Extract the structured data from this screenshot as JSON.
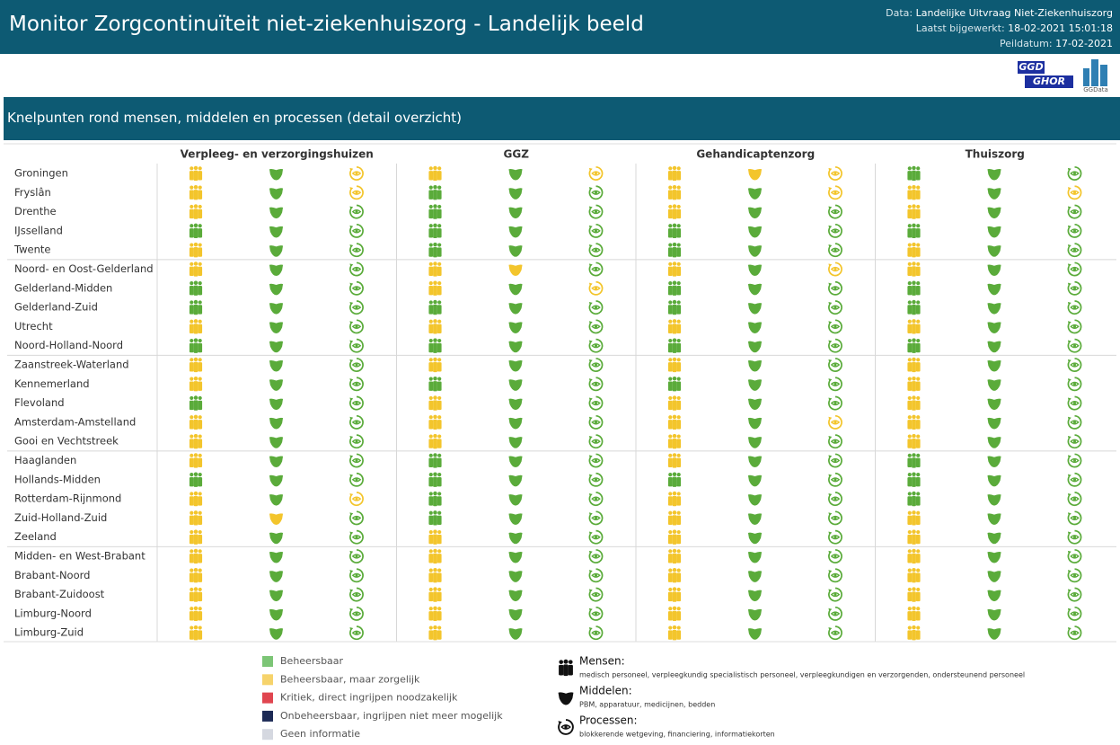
{
  "header": {
    "title": "Monitor Zorgcontinuïteit niet-ziekenhuiszorg - Landelijk beeld",
    "meta": [
      {
        "label": "Data:",
        "value": "Landelijke Uitvraag Niet-Ziekenhuiszorg"
      },
      {
        "label": "Laatst bijgewerkt:",
        "value": "18-02-2021 15:01:18"
      },
      {
        "label": "Peildatum:",
        "value": "17-02-2021"
      }
    ],
    "logos": [
      "GGD",
      "GHOR",
      "GGData"
    ]
  },
  "section": {
    "title": "Knelpunten rond mensen, middelen en processen (detail overzicht)"
  },
  "table": {
    "columns": [
      "Verpleeg- en verzorgingshuizen",
      "GGZ",
      "Gehandicaptenzorg",
      "Thuiszorg"
    ],
    "rows": [
      {
        "name": "Groningen",
        "cells": [
          [
            "#f3c52c",
            "#5aab3a",
            "#f3c52c"
          ],
          [
            "#f3c52c",
            "#5aab3a",
            "#f3c52c"
          ],
          [
            "#f3c52c",
            "#f3c52c",
            "#f3c52c"
          ],
          [
            "#5aab3a",
            "#5aab3a",
            "#5aab3a"
          ]
        ]
      },
      {
        "name": "Fryslân",
        "cells": [
          [
            "#f3c52c",
            "#5aab3a",
            "#f3c52c"
          ],
          [
            "#5aab3a",
            "#5aab3a",
            "#5aab3a"
          ],
          [
            "#f3c52c",
            "#5aab3a",
            "#f3c52c"
          ],
          [
            "#f3c52c",
            "#5aab3a",
            "#f3c52c"
          ]
        ]
      },
      {
        "name": "Drenthe",
        "cells": [
          [
            "#f3c52c",
            "#5aab3a",
            "#5aab3a"
          ],
          [
            "#5aab3a",
            "#5aab3a",
            "#5aab3a"
          ],
          [
            "#f3c52c",
            "#5aab3a",
            "#5aab3a"
          ],
          [
            "#f3c52c",
            "#5aab3a",
            "#5aab3a"
          ]
        ]
      },
      {
        "name": "IJsselland",
        "cells": [
          [
            "#5aab3a",
            "#5aab3a",
            "#5aab3a"
          ],
          [
            "#5aab3a",
            "#5aab3a",
            "#5aab3a"
          ],
          [
            "#5aab3a",
            "#5aab3a",
            "#5aab3a"
          ],
          [
            "#5aab3a",
            "#5aab3a",
            "#5aab3a"
          ]
        ]
      },
      {
        "name": "Twente",
        "cells": [
          [
            "#f3c52c",
            "#5aab3a",
            "#5aab3a"
          ],
          [
            "#5aab3a",
            "#5aab3a",
            "#5aab3a"
          ],
          [
            "#5aab3a",
            "#5aab3a",
            "#5aab3a"
          ],
          [
            "#f3c52c",
            "#5aab3a",
            "#5aab3a"
          ]
        ]
      },
      {
        "name": "Noord- en Oost-Gelderland",
        "cells": [
          [
            "#f3c52c",
            "#5aab3a",
            "#5aab3a"
          ],
          [
            "#f3c52c",
            "#f3c52c",
            "#5aab3a"
          ],
          [
            "#f3c52c",
            "#5aab3a",
            "#f3c52c"
          ],
          [
            "#f3c52c",
            "#5aab3a",
            "#5aab3a"
          ]
        ]
      },
      {
        "name": "Gelderland-Midden",
        "cells": [
          [
            "#5aab3a",
            "#5aab3a",
            "#5aab3a"
          ],
          [
            "#f3c52c",
            "#5aab3a",
            "#f3c52c"
          ],
          [
            "#5aab3a",
            "#5aab3a",
            "#5aab3a"
          ],
          [
            "#5aab3a",
            "#5aab3a",
            "#5aab3a"
          ]
        ]
      },
      {
        "name": "Gelderland-Zuid",
        "cells": [
          [
            "#5aab3a",
            "#5aab3a",
            "#5aab3a"
          ],
          [
            "#5aab3a",
            "#5aab3a",
            "#5aab3a"
          ],
          [
            "#5aab3a",
            "#5aab3a",
            "#5aab3a"
          ],
          [
            "#5aab3a",
            "#5aab3a",
            "#5aab3a"
          ]
        ]
      },
      {
        "name": "Utrecht",
        "cells": [
          [
            "#f3c52c",
            "#5aab3a",
            "#5aab3a"
          ],
          [
            "#f3c52c",
            "#5aab3a",
            "#5aab3a"
          ],
          [
            "#f3c52c",
            "#5aab3a",
            "#5aab3a"
          ],
          [
            "#f3c52c",
            "#5aab3a",
            "#5aab3a"
          ]
        ]
      },
      {
        "name": "Noord-Holland-Noord",
        "cells": [
          [
            "#5aab3a",
            "#5aab3a",
            "#5aab3a"
          ],
          [
            "#5aab3a",
            "#5aab3a",
            "#5aab3a"
          ],
          [
            "#5aab3a",
            "#5aab3a",
            "#5aab3a"
          ],
          [
            "#5aab3a",
            "#5aab3a",
            "#5aab3a"
          ]
        ]
      },
      {
        "name": "Zaanstreek-Waterland",
        "cells": [
          [
            "#f3c52c",
            "#5aab3a",
            "#5aab3a"
          ],
          [
            "#f3c52c",
            "#5aab3a",
            "#5aab3a"
          ],
          [
            "#f3c52c",
            "#5aab3a",
            "#5aab3a"
          ],
          [
            "#f3c52c",
            "#5aab3a",
            "#5aab3a"
          ]
        ]
      },
      {
        "name": "Kennemerland",
        "cells": [
          [
            "#f3c52c",
            "#5aab3a",
            "#5aab3a"
          ],
          [
            "#5aab3a",
            "#5aab3a",
            "#5aab3a"
          ],
          [
            "#5aab3a",
            "#5aab3a",
            "#5aab3a"
          ],
          [
            "#f3c52c",
            "#5aab3a",
            "#5aab3a"
          ]
        ]
      },
      {
        "name": "Flevoland",
        "cells": [
          [
            "#5aab3a",
            "#5aab3a",
            "#5aab3a"
          ],
          [
            "#f3c52c",
            "#5aab3a",
            "#5aab3a"
          ],
          [
            "#f3c52c",
            "#5aab3a",
            "#5aab3a"
          ],
          [
            "#f3c52c",
            "#5aab3a",
            "#5aab3a"
          ]
        ]
      },
      {
        "name": "Amsterdam-Amstelland",
        "cells": [
          [
            "#f3c52c",
            "#5aab3a",
            "#5aab3a"
          ],
          [
            "#f3c52c",
            "#5aab3a",
            "#5aab3a"
          ],
          [
            "#f3c52c",
            "#5aab3a",
            "#f3c52c"
          ],
          [
            "#f3c52c",
            "#5aab3a",
            "#5aab3a"
          ]
        ]
      },
      {
        "name": "Gooi en Vechtstreek",
        "cells": [
          [
            "#f3c52c",
            "#5aab3a",
            "#5aab3a"
          ],
          [
            "#f3c52c",
            "#5aab3a",
            "#5aab3a"
          ],
          [
            "#f3c52c",
            "#5aab3a",
            "#5aab3a"
          ],
          [
            "#f3c52c",
            "#5aab3a",
            "#5aab3a"
          ]
        ]
      },
      {
        "name": "Haaglanden",
        "cells": [
          [
            "#f3c52c",
            "#5aab3a",
            "#5aab3a"
          ],
          [
            "#5aab3a",
            "#5aab3a",
            "#5aab3a"
          ],
          [
            "#f3c52c",
            "#5aab3a",
            "#5aab3a"
          ],
          [
            "#5aab3a",
            "#5aab3a",
            "#5aab3a"
          ]
        ]
      },
      {
        "name": "Hollands-Midden",
        "cells": [
          [
            "#5aab3a",
            "#5aab3a",
            "#5aab3a"
          ],
          [
            "#5aab3a",
            "#5aab3a",
            "#5aab3a"
          ],
          [
            "#5aab3a",
            "#5aab3a",
            "#5aab3a"
          ],
          [
            "#5aab3a",
            "#5aab3a",
            "#5aab3a"
          ]
        ]
      },
      {
        "name": "Rotterdam-Rijnmond",
        "cells": [
          [
            "#f3c52c",
            "#5aab3a",
            "#f3c52c"
          ],
          [
            "#5aab3a",
            "#5aab3a",
            "#5aab3a"
          ],
          [
            "#f3c52c",
            "#5aab3a",
            "#5aab3a"
          ],
          [
            "#5aab3a",
            "#5aab3a",
            "#5aab3a"
          ]
        ]
      },
      {
        "name": "Zuid-Holland-Zuid",
        "cells": [
          [
            "#f3c52c",
            "#f3c52c",
            "#5aab3a"
          ],
          [
            "#5aab3a",
            "#5aab3a",
            "#5aab3a"
          ],
          [
            "#f3c52c",
            "#5aab3a",
            "#5aab3a"
          ],
          [
            "#f3c52c",
            "#5aab3a",
            "#5aab3a"
          ]
        ]
      },
      {
        "name": "Zeeland",
        "cells": [
          [
            "#f3c52c",
            "#5aab3a",
            "#5aab3a"
          ],
          [
            "#f3c52c",
            "#5aab3a",
            "#5aab3a"
          ],
          [
            "#f3c52c",
            "#5aab3a",
            "#5aab3a"
          ],
          [
            "#f3c52c",
            "#5aab3a",
            "#5aab3a"
          ]
        ]
      },
      {
        "name": "Midden- en West-Brabant",
        "cells": [
          [
            "#f3c52c",
            "#5aab3a",
            "#5aab3a"
          ],
          [
            "#f3c52c",
            "#5aab3a",
            "#5aab3a"
          ],
          [
            "#f3c52c",
            "#5aab3a",
            "#5aab3a"
          ],
          [
            "#f3c52c",
            "#5aab3a",
            "#5aab3a"
          ]
        ]
      },
      {
        "name": "Brabant-Noord",
        "cells": [
          [
            "#f3c52c",
            "#5aab3a",
            "#5aab3a"
          ],
          [
            "#f3c52c",
            "#5aab3a",
            "#5aab3a"
          ],
          [
            "#f3c52c",
            "#5aab3a",
            "#5aab3a"
          ],
          [
            "#f3c52c",
            "#5aab3a",
            "#5aab3a"
          ]
        ]
      },
      {
        "name": "Brabant-Zuidoost",
        "cells": [
          [
            "#f3c52c",
            "#5aab3a",
            "#5aab3a"
          ],
          [
            "#f3c52c",
            "#5aab3a",
            "#5aab3a"
          ],
          [
            "#f3c52c",
            "#5aab3a",
            "#5aab3a"
          ],
          [
            "#f3c52c",
            "#5aab3a",
            "#5aab3a"
          ]
        ]
      },
      {
        "name": "Limburg-Noord",
        "cells": [
          [
            "#f3c52c",
            "#5aab3a",
            "#5aab3a"
          ],
          [
            "#f3c52c",
            "#5aab3a",
            "#5aab3a"
          ],
          [
            "#f3c52c",
            "#5aab3a",
            "#5aab3a"
          ],
          [
            "#f3c52c",
            "#5aab3a",
            "#5aab3a"
          ]
        ]
      },
      {
        "name": "Limburg-Zuid",
        "cells": [
          [
            "#f3c52c",
            "#5aab3a",
            "#5aab3a"
          ],
          [
            "#f3c52c",
            "#5aab3a",
            "#5aab3a"
          ],
          [
            "#f3c52c",
            "#5aab3a",
            "#5aab3a"
          ],
          [
            "#f3c52c",
            "#5aab3a",
            "#5aab3a"
          ]
        ]
      }
    ]
  },
  "legend": {
    "statuses": [
      {
        "label": "Beheersbaar",
        "color": "#7cc576"
      },
      {
        "label": "Beheersbaar, maar zorgelijk",
        "color": "#f6d36b"
      },
      {
        "label": "Kritiek, direct ingrijpen noodzakelijk",
        "color": "#e0454f"
      },
      {
        "label": "Onbeheersbaar, ingrijpen niet meer mogelijk",
        "color": "#1c2a55"
      },
      {
        "label": "Geen informatie",
        "color": "#d5d8e0"
      }
    ],
    "categories": [
      {
        "name": "Mensen:",
        "description": "medisch personeel, verpleegkundig specialistisch personeel, verpleegkundigen en verzorgenden, ondersteunend personeel"
      },
      {
        "name": "Middelen:",
        "description": "PBM, apparatuur, medicijnen, bedden"
      },
      {
        "name": "Processen:",
        "description": "blokkerende wetgeving, financiering, informatiekorten"
      }
    ]
  }
}
